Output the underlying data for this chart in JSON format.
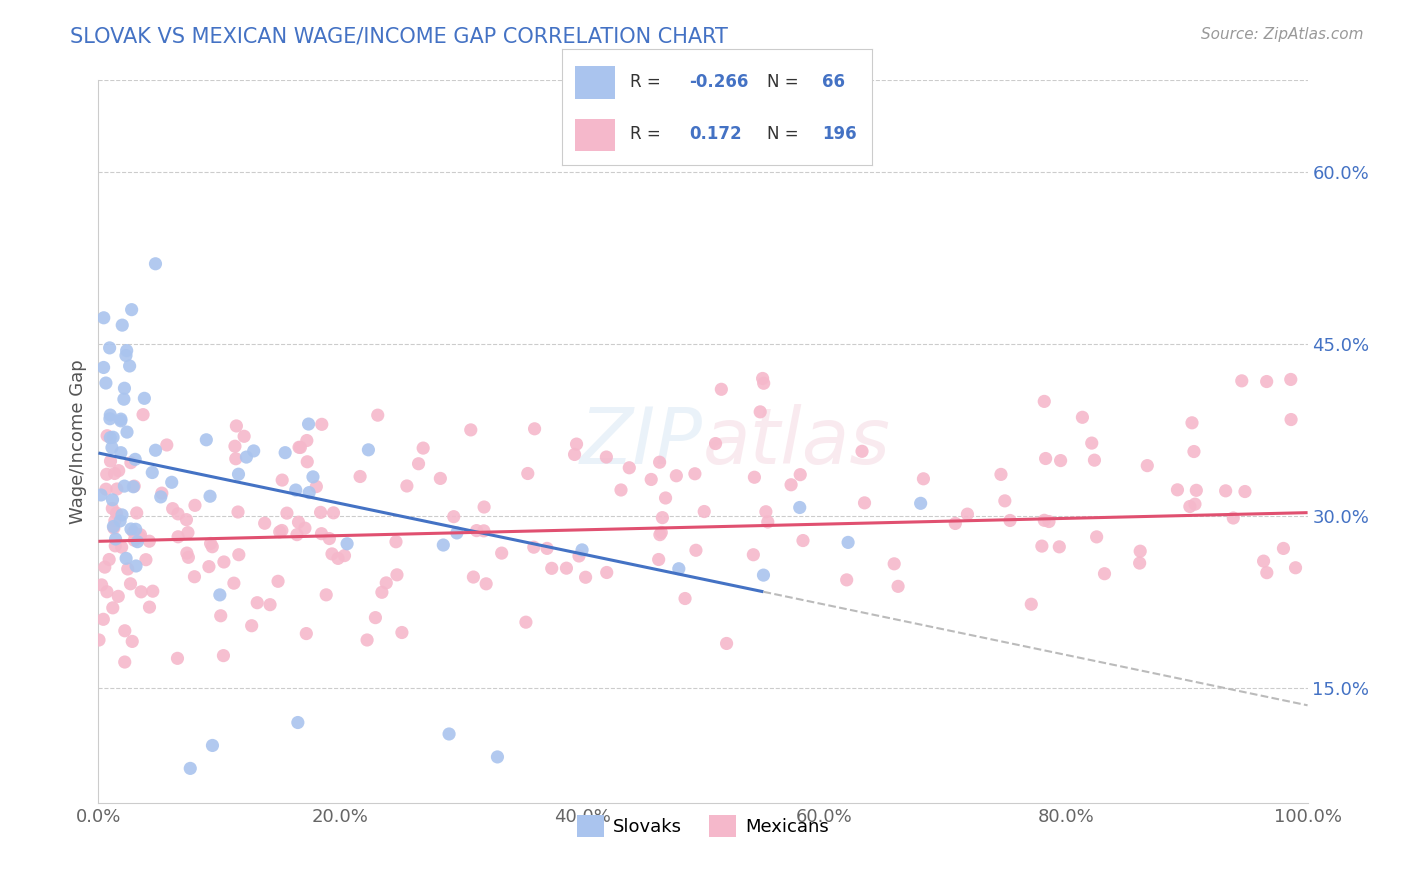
{
  "title": "SLOVAK VS MEXICAN WAGE/INCOME GAP CORRELATION CHART",
  "source": "Source: ZipAtlas.com",
  "ylabel": "Wage/Income Gap",
  "xlim": [
    0.0,
    1.0
  ],
  "ylim": [
    0.05,
    0.68
  ],
  "xticks": [
    0.0,
    0.2,
    0.4,
    0.6,
    0.8,
    1.0
  ],
  "xticklabels": [
    "0.0%",
    "20.0%",
    "40.0%",
    "60.0%",
    "80.0%",
    "100.0%"
  ],
  "yticks": [
    0.15,
    0.3,
    0.45,
    0.6
  ],
  "yticklabels": [
    "15.0%",
    "30.0%",
    "45.0%",
    "60.0%"
  ],
  "slovak_R": -0.266,
  "slovak_N": 66,
  "mexican_R": 0.172,
  "mexican_N": 196,
  "slovak_color": "#aac4ee",
  "mexican_color": "#f5b8cb",
  "slovak_line_color": "#4472c4",
  "mexican_line_color": "#e05070",
  "dash_line_color": "#bbbbbb",
  "legend_slovak_label": "Slovaks",
  "legend_mexican_label": "Mexicans",
  "title_color": "#4472c4",
  "tick_color": "#4472c4",
  "grid_color": "#cccccc",
  "background_color": "#ffffff",
  "legend_R_color": "#4472c4",
  "legend_N_color": "#4472c4",
  "legend_label_color": "#333333"
}
